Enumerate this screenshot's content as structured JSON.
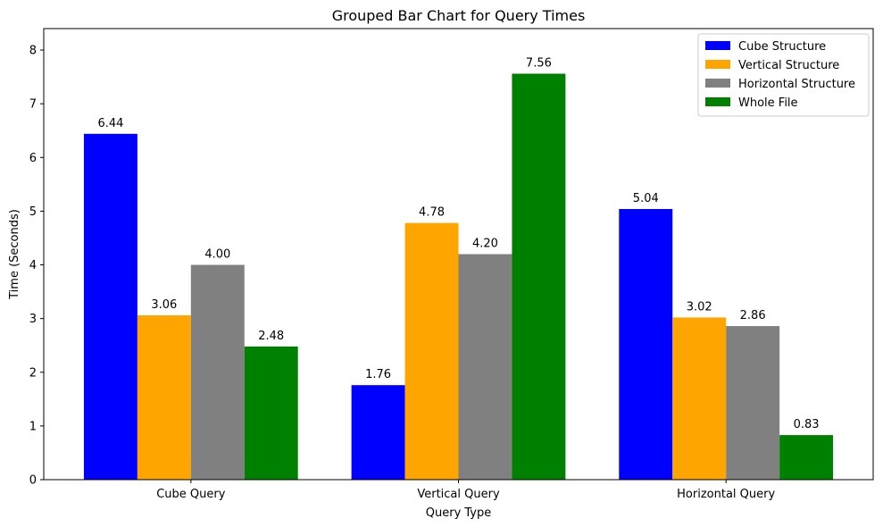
{
  "chart_data": {
    "type": "bar",
    "title": "Grouped Bar Chart for Query Times",
    "xlabel": "Query Type",
    "ylabel": "Time (Seconds)",
    "categories": [
      "Cube Query",
      "Vertical Query",
      "Horizontal Query"
    ],
    "series": [
      {
        "name": "Cube Structure",
        "color": "#0000ff",
        "values": [
          6.44,
          1.76,
          5.04
        ],
        "labels": [
          "6.44",
          "1.76",
          "5.04"
        ]
      },
      {
        "name": "Vertical Structure",
        "color": "#ffa500",
        "values": [
          3.06,
          4.78,
          3.02
        ],
        "labels": [
          "3.06",
          "4.78",
          "3.02"
        ]
      },
      {
        "name": "Horizontal Structure",
        "color": "#808080",
        "values": [
          4.0,
          4.2,
          2.86
        ],
        "labels": [
          "4.00",
          "4.20",
          "2.86"
        ]
      },
      {
        "name": "Whole File",
        "color": "#008000",
        "values": [
          2.48,
          7.56,
          0.83
        ],
        "labels": [
          "2.48",
          "7.56",
          "0.83"
        ]
      }
    ],
    "ylim": [
      0,
      8.4
    ],
    "yticks": [
      0,
      1,
      2,
      3,
      4,
      5,
      6,
      7,
      8
    ],
    "grid": false,
    "legend_position": "top-right"
  }
}
